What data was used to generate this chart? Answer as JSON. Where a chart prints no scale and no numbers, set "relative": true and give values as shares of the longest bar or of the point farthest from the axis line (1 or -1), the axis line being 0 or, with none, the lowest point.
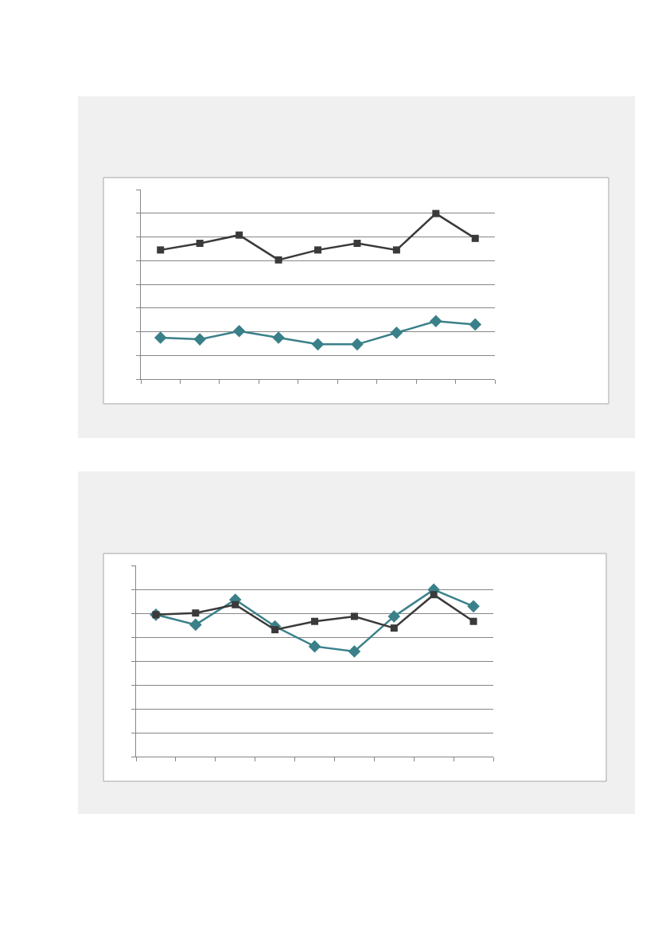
{
  "chart_data": [
    {
      "type": "line",
      "relative": true,
      "categories": [
        null,
        null,
        null,
        null,
        null,
        null,
        null,
        null,
        null
      ],
      "grid": "y",
      "series": [
        {
          "color": "#3a8089",
          "marker": "diamond",
          "values": [
            0.25,
            0.24,
            0.29,
            0.25,
            0.21,
            0.21,
            0.28,
            0.35,
            0.33
          ]
        },
        {
          "color": "#3a3a3a",
          "marker": "square",
          "values": [
            0.78,
            0.82,
            0.87,
            0.72,
            0.78,
            0.82,
            0.78,
            1,
            0.85
          ]
        }
      ]
    },
    {
      "type": "line",
      "relative": true,
      "categories": [
        null,
        null,
        null,
        null,
        null,
        null,
        null,
        null,
        null
      ],
      "grid": "y",
      "series": [
        {
          "color": "#3a8089",
          "marker": "diamond",
          "values": [
            0.85,
            0.79,
            0.94,
            0.78,
            0.66,
            0.63,
            0.84,
            1,
            0.9
          ]
        },
        {
          "color": "#3a3a3a",
          "marker": "square",
          "values": [
            0.85,
            0.86,
            0.91,
            0.76,
            0.81,
            0.84,
            0.77,
            0.97,
            0.81
          ]
        }
      ]
    }
  ]
}
